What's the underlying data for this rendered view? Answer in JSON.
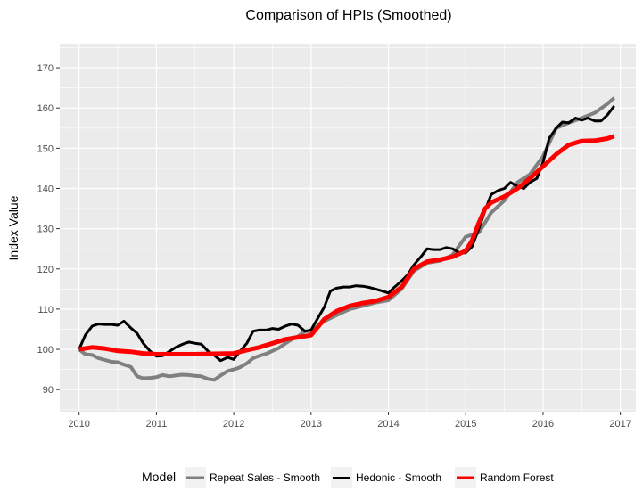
{
  "chart_data": {
    "type": "line",
    "title": "Comparison of HPIs (Smoothed)",
    "xlabel": "",
    "ylabel": "Index Value",
    "xlim": [
      2009.75,
      2017.2
    ],
    "ylim": [
      84.5,
      176
    ],
    "x_ticks": [
      2010,
      2011,
      2012,
      2013,
      2014,
      2015,
      2016,
      2017
    ],
    "y_ticks": [
      90,
      100,
      110,
      120,
      130,
      140,
      150,
      160,
      170
    ],
    "grid": true,
    "legend": {
      "title": "Model",
      "position": "bottom"
    },
    "series": [
      {
        "name": "Repeat Sales - Smooth",
        "color": "#808080",
        "x": [
          2010.0,
          2010.08,
          2010.17,
          2010.25,
          2010.33,
          2010.42,
          2010.5,
          2010.58,
          2010.67,
          2010.75,
          2010.83,
          2010.92,
          2011.0,
          2011.08,
          2011.17,
          2011.25,
          2011.33,
          2011.42,
          2011.5,
          2011.58,
          2011.67,
          2011.75,
          2011.83,
          2011.92,
          2012.0,
          2012.08,
          2012.17,
          2012.25,
          2012.33,
          2012.42,
          2012.5,
          2012.58,
          2012.67,
          2012.75,
          2012.83,
          2012.92,
          2013.0,
          2013.17,
          2013.33,
          2013.5,
          2013.67,
          2013.83,
          2014.0,
          2014.17,
          2014.33,
          2014.5,
          2014.67,
          2014.83,
          2015.0,
          2015.17,
          2015.33,
          2015.5,
          2015.67,
          2015.83,
          2016.0,
          2016.17,
          2016.33,
          2016.5,
          2016.67,
          2016.83,
          2016.92
        ],
        "values": [
          100.0,
          98.8,
          98.6,
          97.8,
          97.4,
          96.9,
          96.8,
          96.2,
          95.6,
          93.3,
          92.8,
          92.9,
          93.1,
          93.6,
          93.3,
          93.5,
          93.7,
          93.6,
          93.4,
          93.3,
          92.6,
          92.4,
          93.5,
          94.6,
          95.0,
          95.5,
          96.5,
          97.8,
          98.4,
          98.9,
          99.6,
          100.3,
          101.5,
          102.5,
          103.2,
          104.5,
          104.5,
          107.0,
          108.5,
          110.0,
          110.8,
          111.6,
          112.2,
          115.0,
          119.5,
          121.5,
          122.0,
          123.5,
          128.0,
          129.0,
          134.0,
          137.0,
          141.5,
          143.5,
          148.0,
          155.0,
          156.3,
          157.5,
          158.8,
          161.0,
          162.5
        ]
      },
      {
        "name": "Hedonic - Smooth",
        "color": "#000000",
        "x": [
          2010.0,
          2010.08,
          2010.17,
          2010.25,
          2010.33,
          2010.42,
          2010.5,
          2010.58,
          2010.67,
          2010.75,
          2010.83,
          2010.92,
          2011.0,
          2011.08,
          2011.17,
          2011.25,
          2011.33,
          2011.42,
          2011.5,
          2011.58,
          2011.67,
          2011.75,
          2011.83,
          2011.92,
          2012.0,
          2012.08,
          2012.17,
          2012.25,
          2012.33,
          2012.42,
          2012.5,
          2012.58,
          2012.67,
          2012.75,
          2012.83,
          2012.92,
          2013.0,
          2013.08,
          2013.17,
          2013.25,
          2013.33,
          2013.42,
          2013.5,
          2013.58,
          2013.67,
          2013.75,
          2013.83,
          2013.92,
          2014.0,
          2014.08,
          2014.17,
          2014.25,
          2014.33,
          2014.42,
          2014.5,
          2014.58,
          2014.67,
          2014.75,
          2014.83,
          2014.92,
          2015.0,
          2015.08,
          2015.17,
          2015.25,
          2015.33,
          2015.42,
          2015.5,
          2015.58,
          2015.67,
          2015.75,
          2015.83,
          2015.92,
          2016.0,
          2016.08,
          2016.17,
          2016.25,
          2016.33,
          2016.42,
          2016.5,
          2016.58,
          2016.67,
          2016.75,
          2016.83,
          2016.92
        ],
        "values": [
          100.0,
          103.5,
          105.8,
          106.3,
          106.2,
          106.2,
          106.0,
          107.0,
          105.3,
          104.0,
          101.5,
          99.5,
          98.3,
          98.4,
          99.5,
          100.5,
          101.2,
          101.8,
          101.5,
          101.3,
          99.5,
          98.5,
          97.2,
          98.0,
          97.5,
          99.5,
          101.5,
          104.5,
          104.8,
          104.8,
          105.2,
          105.0,
          105.8,
          106.3,
          106.0,
          104.5,
          104.8,
          107.5,
          110.5,
          114.5,
          115.2,
          115.5,
          115.5,
          115.8,
          115.7,
          115.4,
          115.0,
          114.5,
          114.0,
          115.5,
          117.0,
          118.5,
          121.0,
          123.0,
          125.0,
          124.8,
          124.8,
          125.3,
          125.0,
          124.0,
          124.0,
          125.5,
          130.0,
          134.5,
          138.5,
          139.5,
          140.0,
          141.5,
          140.5,
          140.0,
          141.5,
          142.5,
          146.5,
          152.5,
          155.0,
          156.5,
          156.3,
          157.5,
          157.0,
          157.5,
          156.8,
          156.8,
          158.2,
          160.5
        ]
      },
      {
        "name": "Random Forest",
        "color": "#ff0000",
        "x": [
          2010.0,
          2010.17,
          2010.33,
          2010.5,
          2010.67,
          2010.83,
          2011.0,
          2011.25,
          2011.5,
          2011.75,
          2012.0,
          2012.17,
          2012.33,
          2012.5,
          2012.67,
          2012.83,
          2013.0,
          2013.17,
          2013.33,
          2013.5,
          2013.67,
          2013.83,
          2014.0,
          2014.17,
          2014.33,
          2014.5,
          2014.67,
          2014.83,
          2015.0,
          2015.08,
          2015.17,
          2015.25,
          2015.33,
          2015.5,
          2015.67,
          2015.83,
          2016.0,
          2016.17,
          2016.33,
          2016.5,
          2016.67,
          2016.83,
          2016.92
        ],
        "values": [
          100.0,
          100.5,
          100.2,
          99.6,
          99.4,
          99.0,
          98.8,
          98.8,
          98.8,
          98.9,
          99.0,
          99.8,
          100.5,
          101.5,
          102.5,
          103.0,
          103.5,
          107.5,
          109.5,
          110.8,
          111.5,
          112.0,
          113.0,
          115.5,
          120.0,
          121.8,
          122.3,
          123.0,
          124.5,
          127.0,
          131.5,
          135.0,
          136.5,
          138.0,
          140.0,
          142.5,
          145.5,
          148.5,
          150.8,
          151.8,
          151.9,
          152.4,
          153.0
        ]
      }
    ]
  }
}
